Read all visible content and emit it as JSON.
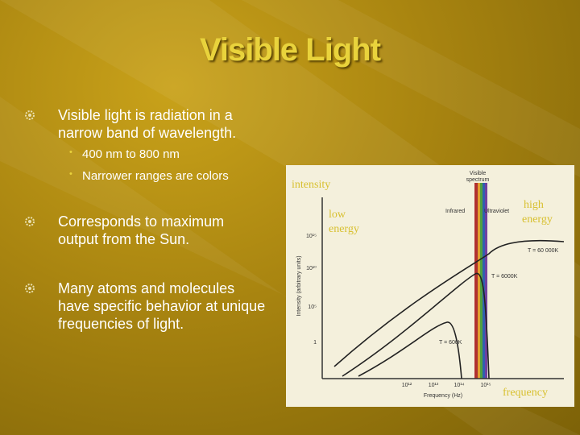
{
  "title": "Visible Light",
  "bullets": [
    {
      "text": "Visible light is radiation in a narrow band of wavelength.",
      "sub": [
        "400 nm to 800 nm",
        "Narrower ranges are colors"
      ]
    },
    {
      "text": "Corresponds to maximum output from the Sun."
    },
    {
      "text": "Many atoms and molecules have specific behavior at unique frequencies of light."
    }
  ],
  "figure": {
    "overlay": {
      "intensity": "intensity",
      "low": [
        "low",
        "energy"
      ],
      "high": [
        "high",
        "energy"
      ],
      "frequency": "frequency"
    },
    "chart": {
      "band_title": [
        "Visible",
        "spectrum"
      ],
      "infrared": "Infrared",
      "ultraviolet": "Ultraviolet",
      "y_axis_title": "Intensity (arbitrary units)",
      "x_axis_title": "Frequency (Hz)",
      "yticks": [
        "10¹⁵",
        "10¹⁰",
        "10⁵",
        "1"
      ],
      "xticks": [
        "10¹²",
        "10¹³",
        "10¹⁴",
        "10¹⁵"
      ],
      "curves": [
        "T = 60 000K",
        "T = 6000K",
        "T = 600K"
      ]
    }
  }
}
